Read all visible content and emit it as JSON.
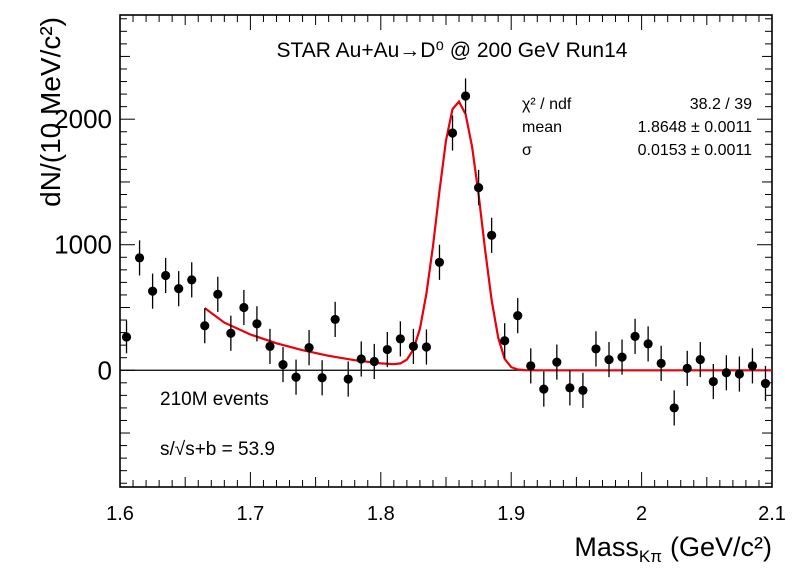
{
  "chart_data": {
    "type": "scatter",
    "title": "STAR Au+Au→D⁰ @ 200 GeV Run14",
    "xlabel": "Mass",
    "xlabel_sub": "Kπ",
    "xlabel_unit": "(GeV/c²)",
    "ylabel": "dN/(10 MeV/c²)",
    "xlim": [
      1.6,
      2.1
    ],
    "ylim": [
      -930,
      2830
    ],
    "xticks": [
      "1.6",
      "1.7",
      "1.8",
      "1.9",
      "2",
      "2.1"
    ],
    "yticks": [
      "0",
      "1000",
      "2000"
    ],
    "zero_line": true,
    "grid": false,
    "stats": {
      "chi2_label": "χ² / ndf",
      "chi2_value": "38.2 / 39",
      "mean_label": "mean",
      "mean_value": "1.8648 ± 0.0011",
      "sigma_label": "σ",
      "sigma_value": "0.0153 ± 0.0011"
    },
    "annotations": {
      "events": "210M events",
      "significance": "s/√s+b = 53.9"
    },
    "series": [
      {
        "kind": "points_with_errors",
        "x": [
          1.605,
          1.615,
          1.625,
          1.635,
          1.645,
          1.655,
          1.665,
          1.675,
          1.685,
          1.695,
          1.705,
          1.715,
          1.725,
          1.735,
          1.745,
          1.755,
          1.765,
          1.775,
          1.785,
          1.795,
          1.805,
          1.815,
          1.825,
          1.835,
          1.845,
          1.855,
          1.865,
          1.875,
          1.885,
          1.895,
          1.905,
          1.915,
          1.925,
          1.935,
          1.945,
          1.955,
          1.965,
          1.975,
          1.985,
          1.995,
          2.005,
          2.015,
          2.025,
          2.035,
          2.045,
          2.055,
          2.065,
          2.075,
          2.085,
          2.095
        ],
        "y": [
          265,
          895,
          630,
          755,
          650,
          720,
          355,
          605,
          295,
          500,
          370,
          190,
          45,
          -55,
          180,
          -60,
          405,
          -70,
          90,
          70,
          165,
          250,
          190,
          185,
          860,
          1890,
          2185,
          1455,
          1075,
          235,
          435,
          35,
          -150,
          65,
          -140,
          -160,
          170,
          85,
          105,
          270,
          210,
          55,
          -300,
          15,
          85,
          -90,
          -20,
          -30,
          35,
          -105
        ],
        "err": [
          130,
          140,
          140,
          140,
          140,
          140,
          140,
          140,
          140,
          140,
          140,
          140,
          140,
          140,
          140,
          140,
          140,
          140,
          140,
          140,
          140,
          140,
          140,
          140,
          140,
          140,
          140,
          140,
          140,
          140,
          140,
          140,
          140,
          140,
          140,
          140,
          140,
          140,
          140,
          140,
          140,
          140,
          140,
          140,
          140,
          140,
          140,
          140,
          140,
          140
        ],
        "color": "#000000"
      },
      {
        "kind": "fit_curve",
        "x": [
          1.665,
          1.68,
          1.7,
          1.72,
          1.74,
          1.76,
          1.78,
          1.8,
          1.81,
          1.815,
          1.82,
          1.825,
          1.83,
          1.835,
          1.84,
          1.845,
          1.85,
          1.855,
          1.86,
          1.865,
          1.87,
          1.875,
          1.88,
          1.885,
          1.89,
          1.895,
          1.9,
          1.905,
          1.91,
          1.92,
          1.95,
          2.0,
          2.05,
          2.1
        ],
        "y": [
          495,
          380,
          285,
          215,
          160,
          115,
          80,
          55,
          48,
          55,
          85,
          165,
          330,
          610,
          990,
          1430,
          1830,
          2080,
          2140,
          2040,
          1780,
          1400,
          960,
          560,
          260,
          90,
          25,
          6,
          1,
          0,
          0,
          0,
          0,
          0
        ],
        "color": "#e8000b"
      }
    ]
  }
}
